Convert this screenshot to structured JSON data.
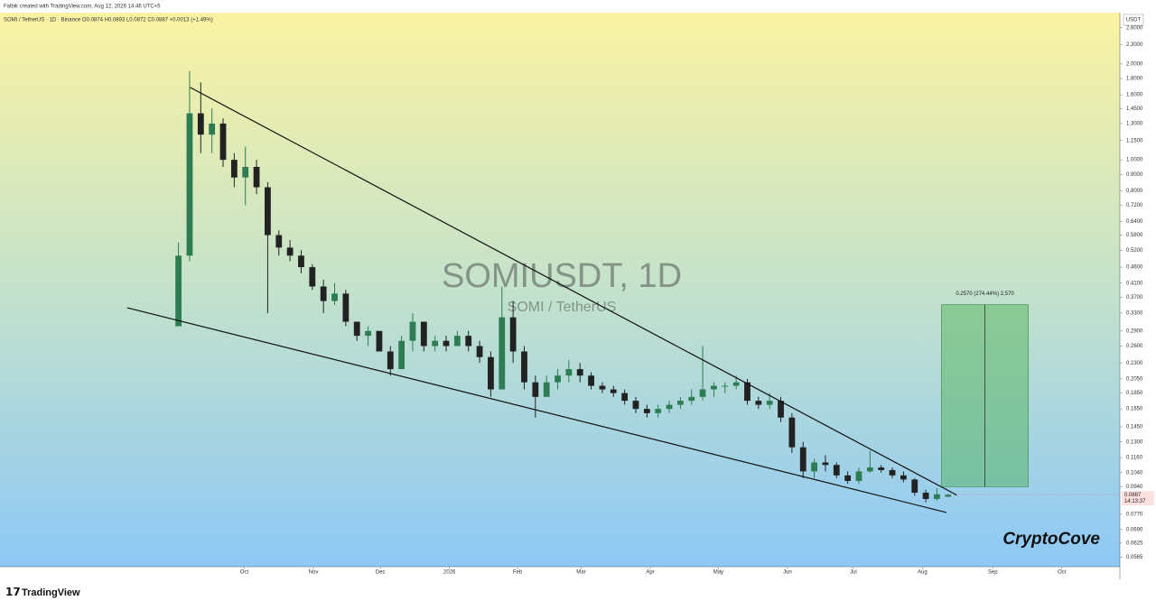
{
  "chart_data": {
    "type": "candlestick",
    "header": "Falbik created with TradingView.com, Aug 12, 2026 14:46 UTC+5",
    "legend": "SOMI / TetherUS · 1D · Binance  O0.0874 H0.0893 L0.0872 C0.0887 +0.0013 (+1.49%)",
    "watermark_title": "SOMIUSDT, 1D",
    "watermark_subtitle": "SOMI / TetherUS",
    "y_axis_label": "USDT",
    "signature": "CryptoCove",
    "brand": "TradingView",
    "last_price": 0.0887,
    "countdown": "14:13:37",
    "log_scale": true,
    "up_color": "#2e7d52",
    "down_color": "#222222",
    "open": [
      0.3,
      0.5,
      1.4,
      1.2,
      1.3,
      1.0,
      0.88,
      0.95,
      0.82,
      0.58,
      0.53,
      0.5,
      0.46,
      0.4,
      0.36,
      0.38,
      0.31,
      0.28,
      0.29,
      0.25,
      0.22,
      0.27,
      0.31,
      0.26,
      0.27,
      0.26,
      0.28,
      0.26,
      0.24,
      0.19,
      0.32,
      0.25,
      0.2,
      0.18,
      0.2,
      0.21,
      0.22,
      0.21,
      0.195,
      0.19,
      0.185,
      0.175,
      0.165,
      0.16,
      0.165,
      0.17,
      0.175,
      0.18,
      0.19,
      0.195,
      0.195,
      0.2,
      0.175,
      0.17,
      0.175,
      0.155,
      0.125,
      0.105,
      0.112,
      0.11,
      0.102,
      0.098,
      0.105,
      0.108,
      0.106,
      0.102,
      0.099,
      0.09,
      0.086,
      0.0874
    ],
    "high": [
      0.55,
      1.9,
      1.75,
      1.45,
      1.35,
      1.05,
      1.1,
      1.0,
      0.85,
      0.6,
      0.56,
      0.52,
      0.47,
      0.42,
      0.41,
      0.39,
      0.31,
      0.3,
      0.29,
      0.26,
      0.28,
      0.33,
      0.31,
      0.28,
      0.28,
      0.29,
      0.29,
      0.27,
      0.25,
      0.4,
      0.36,
      0.26,
      0.21,
      0.21,
      0.22,
      0.235,
      0.23,
      0.215,
      0.2,
      0.195,
      0.19,
      0.18,
      0.17,
      0.17,
      0.175,
      0.18,
      0.19,
      0.26,
      0.2,
      0.2,
      0.21,
      0.205,
      0.18,
      0.185,
      0.18,
      0.16,
      0.13,
      0.115,
      0.118,
      0.112,
      0.105,
      0.108,
      0.122,
      0.11,
      0.108,
      0.105,
      0.1,
      0.092,
      0.093,
      0.0893
    ],
    "low": [
      0.3,
      0.48,
      1.05,
      1.05,
      0.95,
      0.82,
      0.72,
      0.78,
      0.33,
      0.5,
      0.48,
      0.44,
      0.39,
      0.33,
      0.35,
      0.3,
      0.27,
      0.26,
      0.25,
      0.21,
      0.22,
      0.25,
      0.25,
      0.25,
      0.25,
      0.26,
      0.25,
      0.23,
      0.18,
      0.19,
      0.23,
      0.19,
      0.155,
      0.18,
      0.19,
      0.2,
      0.2,
      0.19,
      0.185,
      0.18,
      0.17,
      0.16,
      0.155,
      0.155,
      0.16,
      0.165,
      0.17,
      0.175,
      0.18,
      0.185,
      0.19,
      0.17,
      0.165,
      0.165,
      0.15,
      0.12,
      0.1,
      0.1,
      0.105,
      0.1,
      0.096,
      0.096,
      0.104,
      0.104,
      0.1,
      0.097,
      0.088,
      0.084,
      0.085,
      0.0872
    ],
    "close": [
      0.5,
      1.4,
      1.2,
      1.3,
      1.0,
      0.88,
      0.95,
      0.82,
      0.58,
      0.53,
      0.5,
      0.46,
      0.4,
      0.36,
      0.38,
      0.31,
      0.28,
      0.29,
      0.25,
      0.22,
      0.27,
      0.31,
      0.26,
      0.27,
      0.26,
      0.28,
      0.26,
      0.24,
      0.19,
      0.32,
      0.25,
      0.2,
      0.18,
      0.2,
      0.21,
      0.22,
      0.21,
      0.195,
      0.19,
      0.185,
      0.175,
      0.165,
      0.16,
      0.165,
      0.17,
      0.175,
      0.18,
      0.19,
      0.195,
      0.195,
      0.2,
      0.175,
      0.17,
      0.175,
      0.155,
      0.125,
      0.105,
      0.112,
      0.11,
      0.102,
      0.098,
      0.105,
      0.108,
      0.106,
      0.102,
      0.099,
      0.09,
      0.086,
      0.089,
      0.0887
    ],
    "trendlines": [
      {
        "x": [
          1.05,
          69.8
        ],
        "y": [
          1.688,
          0.0884
        ]
      },
      {
        "x": [
          -4.6,
          68.85
        ],
        "y": [
          0.343,
          0.078
        ]
      }
    ],
    "measure": {
      "xlim": [
        68.4,
        76.2
      ],
      "ylim": [
        0.094,
        0.351
      ],
      "label": "0.2570 (274.44%) 2,570"
    },
    "xlim": [
      -16,
      84.4
    ],
    "xticks": [
      {
        "value": 5.9,
        "label": "Oct"
      },
      {
        "value": 12.1,
        "label": "Nov"
      },
      {
        "value": 18.1,
        "label": "Dec"
      },
      {
        "value": 24.3,
        "label": "2026"
      },
      {
        "value": 30.4,
        "label": "Feb"
      },
      {
        "value": 36.1,
        "label": "Mar"
      },
      {
        "value": 42.3,
        "label": "Apr"
      },
      {
        "value": 48.4,
        "label": "May"
      },
      {
        "value": 54.6,
        "label": "Jun"
      },
      {
        "value": 60.5,
        "label": "Jul"
      },
      {
        "value": 66.7,
        "label": "Aug"
      },
      {
        "value": 73.0,
        "label": "Sep"
      },
      {
        "value": 79.2,
        "label": "Oct"
      }
    ],
    "ylim": [
      0.0527,
      2.9
    ],
    "yticks": [
      {
        "value": 2.6,
        "label": "2.6000"
      },
      {
        "value": 2.3,
        "label": "2.3000"
      },
      {
        "value": 2.0,
        "label": "2.0000"
      },
      {
        "value": 1.8,
        "label": "1.8000"
      },
      {
        "value": 1.6,
        "label": "1.6000"
      },
      {
        "value": 1.45,
        "label": "1.4500"
      },
      {
        "value": 1.3,
        "label": "1.3000"
      },
      {
        "value": 1.15,
        "label": "1.1500"
      },
      {
        "value": 1.0,
        "label": "1.0000"
      },
      {
        "value": 0.9,
        "label": "0.9000"
      },
      {
        "value": 0.8,
        "label": "0.8000"
      },
      {
        "value": 0.72,
        "label": "0.7200"
      },
      {
        "value": 0.64,
        "label": "0.6400"
      },
      {
        "value": 0.58,
        "label": "0.5800"
      },
      {
        "value": 0.52,
        "label": "0.5200"
      },
      {
        "value": 0.46,
        "label": "0.4600"
      },
      {
        "value": 0.41,
        "label": "0.4100"
      },
      {
        "value": 0.37,
        "label": "0.3700"
      },
      {
        "value": 0.33,
        "label": "0.3300"
      },
      {
        "value": 0.29,
        "label": "0.2900"
      },
      {
        "value": 0.26,
        "label": "0.2600"
      },
      {
        "value": 0.23,
        "label": "0.2300"
      },
      {
        "value": 0.205,
        "label": "0.2050"
      },
      {
        "value": 0.185,
        "label": "0.1850"
      },
      {
        "value": 0.165,
        "label": "0.1650"
      },
      {
        "value": 0.145,
        "label": "0.1450"
      },
      {
        "value": 0.13,
        "label": "0.1300"
      },
      {
        "value": 0.116,
        "label": "0.1160"
      },
      {
        "value": 0.104,
        "label": "0.1040"
      },
      {
        "value": 0.094,
        "label": "0.0940"
      },
      {
        "value": 0.077,
        "label": "0.0770"
      },
      {
        "value": 0.069,
        "label": "0.0690"
      },
      {
        "value": 0.0625,
        "label": "0.0625"
      },
      {
        "value": 0.0565,
        "label": "0.0565"
      }
    ]
  }
}
